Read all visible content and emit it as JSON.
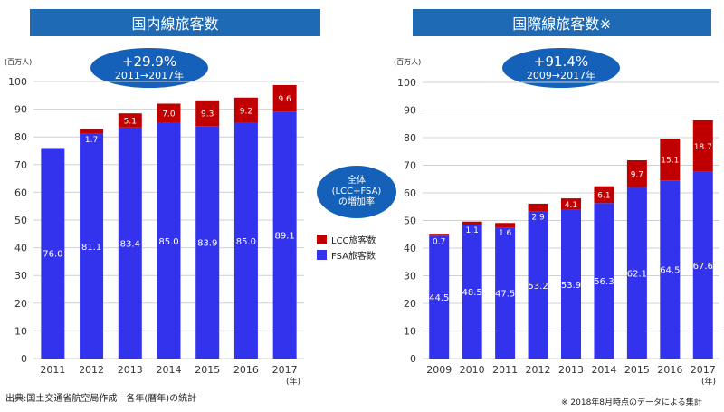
{
  "left_panel": {
    "title": "国内線旅客数",
    "unit_label": "(百万人)",
    "growth_rate": "+29.9%",
    "growth_period": "2011→2017年",
    "year_suffix": "(年)"
  },
  "right_panel": {
    "title": "国際線旅客数※",
    "unit_label": "(百万人)",
    "growth_rate": "+91.4%",
    "growth_period": "2009→2017年",
    "year_suffix": "(年)"
  },
  "total_bubble": {
    "line1": "全体",
    "line2": "(LCC+FSA)",
    "line3": "の増加率"
  },
  "legend": {
    "lcc": "LCC旅客数",
    "fsa": "FSA旅客数"
  },
  "footer": {
    "source": "出典:国土交通省航空局作成　各年(暦年)の統計",
    "note": "※ 2018年8月時点のデータによる集計"
  },
  "colors": {
    "header": "#1e6ab4",
    "bubble": "#1560b8",
    "fsa": "#3333ee",
    "lcc": "#c00000"
  },
  "chart_data": [
    {
      "type": "bar",
      "stacked": true,
      "title": "国内線旅客数",
      "ylabel": "(百万人)",
      "xlabel": "(年)",
      "ylim": [
        0,
        100
      ],
      "yticks": [
        0,
        10,
        20,
        30,
        40,
        50,
        60,
        70,
        80,
        90,
        100
      ],
      "grid": true,
      "categories": [
        "2011",
        "2012",
        "2013",
        "2014",
        "2015",
        "2016",
        "2017"
      ],
      "series": [
        {
          "name": "FSA旅客数",
          "values": [
            76.0,
            81.1,
            83.4,
            85.0,
            83.9,
            85.0,
            89.1
          ]
        },
        {
          "name": "LCC旅客数",
          "values": [
            0,
            1.7,
            5.1,
            7.0,
            9.3,
            9.2,
            9.6
          ]
        }
      ]
    },
    {
      "type": "bar",
      "stacked": true,
      "title": "国際線旅客数※",
      "ylabel": "(百万人)",
      "xlabel": "(年)",
      "ylim": [
        0,
        100
      ],
      "yticks": [
        0,
        10,
        20,
        30,
        40,
        50,
        60,
        70,
        80,
        90,
        100
      ],
      "grid": true,
      "categories": [
        "2009",
        "2010",
        "2011",
        "2012",
        "2013",
        "2014",
        "2015",
        "2016",
        "2017"
      ],
      "series": [
        {
          "name": "FSA旅客数",
          "values": [
            44.5,
            48.5,
            47.5,
            53.2,
            53.9,
            56.3,
            62.1,
            64.5,
            67.6
          ]
        },
        {
          "name": "LCC旅客数",
          "values": [
            0.7,
            1.1,
            1.6,
            2.9,
            4.1,
            6.1,
            9.7,
            15.1,
            18.7
          ]
        }
      ]
    }
  ]
}
